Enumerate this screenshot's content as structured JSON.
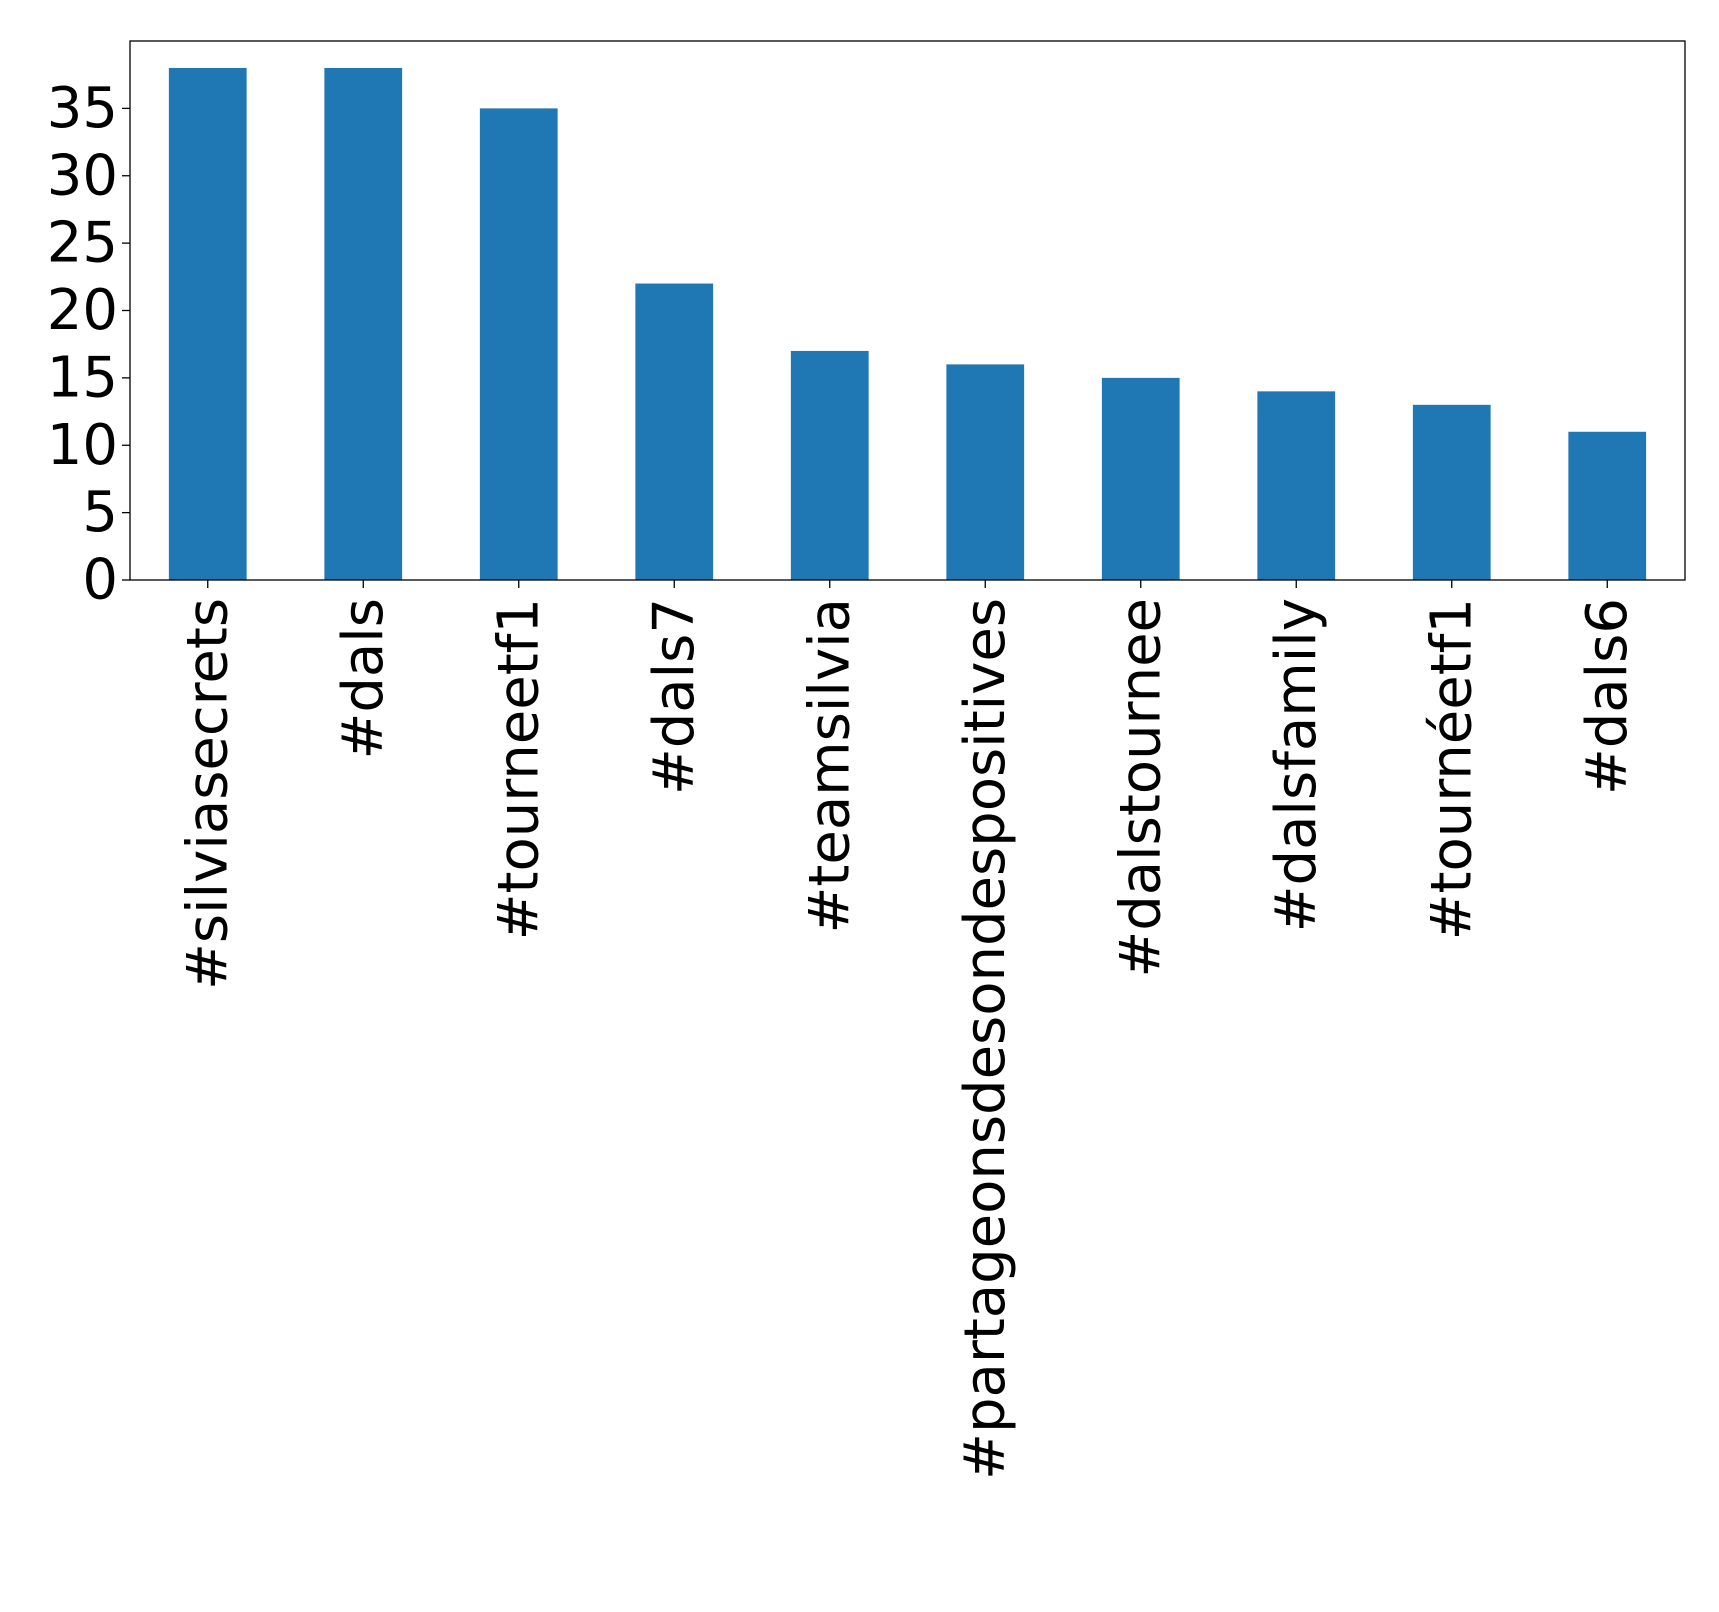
{
  "chart_data": {
    "type": "bar",
    "categories": [
      "#silviasecrets",
      "#dals",
      "#tourneetf1",
      "#dals7",
      "#teamsilvia",
      "#partageonsdesondespositives",
      "#dalstournee",
      "#dalsfamily",
      "#tournéetf1",
      "#dals6"
    ],
    "values": [
      38,
      38,
      35,
      22,
      17,
      16,
      15,
      14,
      13,
      11
    ],
    "ylim": [
      0,
      40
    ],
    "yticks": [
      0,
      5,
      10,
      15,
      20,
      25,
      30,
      35
    ],
    "grid": false,
    "legend": "none",
    "bar_color": "#1f77b4"
  }
}
